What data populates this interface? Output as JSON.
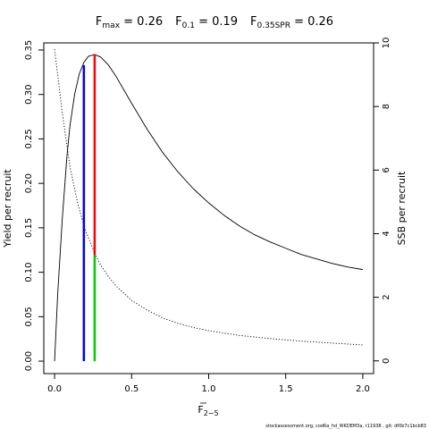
{
  "title": {
    "fmax_label": "F",
    "fmax_sub": "max",
    "fmax_value": " = 0.26",
    "f01_label": "F",
    "f01_sub": "0.1",
    "f01_value": " = 0.19",
    "f35_label": "F",
    "f35_sub": "0.35SPR",
    "f35_value": " = 0.26"
  },
  "footer": "stockassessment.org, cod6a_hd_WKDEM3a, r11938 , git: df0b7c1bcb83",
  "chart_data": {
    "type": "line",
    "xlabel_main": "F",
    "xlabel_sub": "2−5",
    "ylabel_left": "Yield per recruit",
    "ylabel_right": "SSB per recruit",
    "xlim": [
      -0.07,
      2.07
    ],
    "ylim_left": [
      -0.014,
      0.358
    ],
    "ylim_right": [
      -0.4,
      10.0
    ],
    "x_ticks": [
      0.0,
      0.5,
      1.0,
      1.5,
      2.0
    ],
    "x_tick_labels": [
      "0.0",
      "0.5",
      "1.0",
      "1.5",
      "2.0"
    ],
    "y_left_ticks": [
      0.0,
      0.05,
      0.1,
      0.15,
      0.2,
      0.25,
      0.3,
      0.35
    ],
    "y_left_tick_labels": [
      "0.00",
      "0.05",
      "0.10",
      "0.15",
      "0.20",
      "0.25",
      "0.30",
      "0.35"
    ],
    "y_right_ticks": [
      0,
      2,
      4,
      6,
      8,
      10
    ],
    "y_right_tick_labels": [
      "0",
      "2",
      "4",
      "6",
      "8",
      "10"
    ],
    "series": [
      {
        "axis": "left",
        "style": "solid",
        "color": "#000000",
        "x": [
          0.0,
          0.02,
          0.05,
          0.08,
          0.1,
          0.13,
          0.16,
          0.19,
          0.22,
          0.26,
          0.3,
          0.35,
          0.4,
          0.45,
          0.5,
          0.6,
          0.7,
          0.8,
          0.9,
          1.0,
          1.1,
          1.2,
          1.3,
          1.4,
          1.5,
          1.6,
          1.7,
          1.8,
          1.9,
          2.0
        ],
        "y": [
          0.0,
          0.075,
          0.16,
          0.23,
          0.265,
          0.3,
          0.323,
          0.336,
          0.343,
          0.345,
          0.342,
          0.333,
          0.32,
          0.305,
          0.29,
          0.261,
          0.235,
          0.213,
          0.194,
          0.178,
          0.164,
          0.152,
          0.142,
          0.134,
          0.127,
          0.12,
          0.115,
          0.11,
          0.106,
          0.103
        ]
      },
      {
        "axis": "right",
        "style": "dotted",
        "color": "#000000",
        "x": [
          0.0,
          0.05,
          0.1,
          0.15,
          0.2,
          0.26,
          0.3,
          0.35,
          0.4,
          0.5,
          0.6,
          0.7,
          0.8,
          0.9,
          1.0,
          1.2,
          1.4,
          1.6,
          1.8,
          2.0
        ],
        "y": [
          9.8,
          7.8,
          6.1,
          4.95,
          4.1,
          3.4,
          3.0,
          2.65,
          2.35,
          1.9,
          1.6,
          1.35,
          1.18,
          1.05,
          0.95,
          0.8,
          0.7,
          0.62,
          0.56,
          0.5
        ]
      }
    ],
    "reference_lines": [
      {
        "name": "F0.1",
        "x": 0.19,
        "y_bottom": 0.0,
        "y_top": 0.333,
        "color": "#0000ff"
      },
      {
        "name": "Fmax",
        "x": 0.26,
        "y_bottom": 0.119,
        "y_top": 0.345,
        "color": "#ff0000"
      },
      {
        "name": "F0.35SPR",
        "x": 0.26,
        "y_bottom": 0.0,
        "y_top": 0.119,
        "color": "#00cd00"
      }
    ]
  }
}
